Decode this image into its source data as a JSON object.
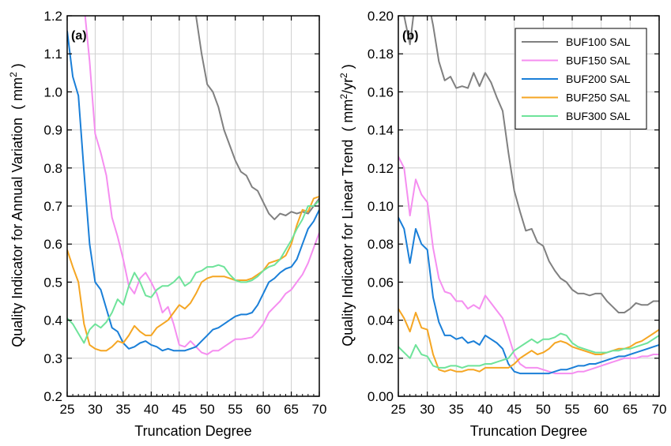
{
  "colors": {
    "BUF100": "#808080",
    "BUF150": "#f58ef0",
    "BUF200": "#1a7fd8",
    "BUF250": "#f5a623",
    "BUF300": "#6ee39a",
    "grid": "#d0d0d0"
  },
  "chart_data": [
    {
      "type": "line",
      "panel_label": "(a)",
      "xlabel": "Truncation Degree",
      "ylabel": "Quality Indicator for Annual Variation",
      "ylabel_unit_open": "( mm",
      "ylabel_unit_sup": "2",
      "ylabel_unit_close": " )",
      "xlim": [
        25,
        70
      ],
      "ylim": [
        0.2,
        1.2
      ],
      "xticks": [
        25,
        30,
        35,
        40,
        45,
        50,
        55,
        60,
        65,
        70
      ],
      "yticks": [
        0.2,
        0.3,
        0.4,
        0.5,
        0.6,
        0.7,
        0.8,
        0.9,
        1.0,
        1.1,
        1.2
      ],
      "ytick_labels": [
        "0.2",
        "0.3",
        "0.4",
        "0.5",
        "0.6",
        "0.7",
        "0.8",
        "0.9",
        "1.0",
        "1.1",
        "1.2"
      ],
      "grid": true,
      "x": [
        25,
        26,
        27,
        28,
        29,
        30,
        31,
        32,
        33,
        34,
        35,
        36,
        37,
        38,
        39,
        40,
        41,
        42,
        43,
        44,
        45,
        46,
        47,
        48,
        49,
        50,
        51,
        52,
        53,
        54,
        55,
        56,
        57,
        58,
        59,
        60,
        61,
        62,
        63,
        64,
        65,
        66,
        67,
        68,
        69,
        70
      ],
      "series": [
        {
          "name": "BUF100 SAL",
          "color_key": "BUF100",
          "values": [
            null,
            null,
            null,
            null,
            null,
            null,
            null,
            null,
            null,
            null,
            null,
            null,
            null,
            null,
            null,
            null,
            null,
            null,
            null,
            null,
            null,
            null,
            1.3,
            1.2,
            1.1,
            1.02,
            1.0,
            0.96,
            0.9,
            0.86,
            0.82,
            0.79,
            0.78,
            0.75,
            0.74,
            0.71,
            0.68,
            0.665,
            0.68,
            0.675,
            0.685,
            0.68,
            0.685,
            0.68,
            0.7,
            0.72
          ]
        },
        {
          "name": "BUF150 SAL",
          "color_key": "BUF150",
          "values": [
            null,
            null,
            1.4,
            1.23,
            1.08,
            0.89,
            0.84,
            0.78,
            0.67,
            0.62,
            0.56,
            0.49,
            0.47,
            0.51,
            0.525,
            0.5,
            0.47,
            0.42,
            0.435,
            0.39,
            0.335,
            0.33,
            0.345,
            0.33,
            0.315,
            0.31,
            0.32,
            0.32,
            0.33,
            0.34,
            0.35,
            0.35,
            0.352,
            0.355,
            0.37,
            0.39,
            0.42,
            0.435,
            0.45,
            0.47,
            0.48,
            0.5,
            0.52,
            0.55,
            0.59,
            0.63
          ]
        },
        {
          "name": "BUF200 SAL",
          "color_key": "BUF200",
          "values": [
            1.16,
            1.04,
            0.99,
            0.79,
            0.6,
            0.5,
            0.48,
            0.43,
            0.38,
            0.37,
            0.34,
            0.325,
            0.33,
            0.34,
            0.345,
            0.335,
            0.33,
            0.32,
            0.325,
            0.32,
            0.32,
            0.32,
            0.325,
            0.33,
            0.345,
            0.36,
            0.375,
            0.38,
            0.39,
            0.4,
            0.41,
            0.415,
            0.415,
            0.42,
            0.44,
            0.47,
            0.5,
            0.51,
            0.525,
            0.535,
            0.54,
            0.56,
            0.6,
            0.64,
            0.66,
            0.69
          ]
        },
        {
          "name": "BUF250 SAL",
          "color_key": "BUF250",
          "values": [
            0.585,
            0.54,
            0.5,
            0.39,
            0.335,
            0.325,
            0.32,
            0.32,
            0.33,
            0.345,
            0.34,
            0.36,
            0.385,
            0.37,
            0.36,
            0.36,
            0.38,
            0.39,
            0.4,
            0.42,
            0.44,
            0.43,
            0.445,
            0.47,
            0.5,
            0.51,
            0.515,
            0.515,
            0.515,
            0.51,
            0.505,
            0.505,
            0.505,
            0.51,
            0.52,
            0.53,
            0.55,
            0.555,
            0.56,
            0.57,
            0.6,
            0.65,
            0.69,
            0.685,
            0.72,
            0.725
          ]
        },
        {
          "name": "BUF300 SAL",
          "color_key": "BUF300",
          "values": [
            0.405,
            0.39,
            0.365,
            0.34,
            0.375,
            0.39,
            0.38,
            0.395,
            0.42,
            0.455,
            0.44,
            0.49,
            0.525,
            0.5,
            0.465,
            0.46,
            0.48,
            0.49,
            0.49,
            0.5,
            0.515,
            0.49,
            0.5,
            0.525,
            0.53,
            0.54,
            0.54,
            0.545,
            0.54,
            0.52,
            0.505,
            0.5,
            0.5,
            0.505,
            0.515,
            0.53,
            0.54,
            0.545,
            0.56,
            0.585,
            0.61,
            0.64,
            0.665,
            0.7,
            0.7,
            0.715
          ]
        }
      ]
    },
    {
      "type": "line",
      "panel_label": "(b)",
      "xlabel": "Truncation Degree",
      "ylabel": "Quality Indicator for Linear Trend",
      "ylabel_unit_open": "( mm",
      "ylabel_unit_sup": "2",
      "ylabel_unit_mid": "/yr",
      "ylabel_unit_sup2": "2",
      "ylabel_unit_close": " )",
      "xlim": [
        25,
        70
      ],
      "ylim": [
        0,
        0.2
      ],
      "xticks": [
        25,
        30,
        35,
        40,
        45,
        50,
        55,
        60,
        65,
        70
      ],
      "yticks": [
        0,
        0.02,
        0.04,
        0.06,
        0.08,
        0.1,
        0.12,
        0.14,
        0.16,
        0.18,
        0.2
      ],
      "ytick_labels": [
        "0.00",
        "0.02",
        "0.04",
        "0.06",
        "0.08",
        "0.10",
        "0.12",
        "0.14",
        "0.16",
        "0.18",
        "0.20"
      ],
      "grid": true,
      "legend_position": "top-right",
      "x": [
        25,
        26,
        27,
        28,
        29,
        30,
        31,
        32,
        33,
        34,
        35,
        36,
        37,
        38,
        39,
        40,
        41,
        42,
        43,
        44,
        45,
        46,
        47,
        48,
        49,
        50,
        51,
        52,
        53,
        54,
        55,
        56,
        57,
        58,
        59,
        60,
        61,
        62,
        63,
        64,
        65,
        66,
        67,
        68,
        69,
        70
      ],
      "series": [
        {
          "name": "BUF100 SAL",
          "color_key": "BUF100",
          "values": [
            0.21,
            0.2,
            0.185,
            0.21,
            0.215,
            0.21,
            0.195,
            0.176,
            0.166,
            0.168,
            0.162,
            0.163,
            0.162,
            0.17,
            0.163,
            0.17,
            0.165,
            0.157,
            0.15,
            0.128,
            0.108,
            0.097,
            0.087,
            0.088,
            0.081,
            0.079,
            0.071,
            0.066,
            0.062,
            0.06,
            0.056,
            0.054,
            0.054,
            0.053,
            0.054,
            0.054,
            0.05,
            0.047,
            0.044,
            0.044,
            0.046,
            0.049,
            0.048,
            0.048,
            0.05,
            0.05
          ]
        },
        {
          "name": "BUF150 SAL",
          "color_key": "BUF150",
          "values": [
            0.126,
            0.12,
            0.095,
            0.114,
            0.106,
            0.102,
            0.078,
            0.062,
            0.055,
            0.054,
            0.05,
            0.05,
            0.046,
            0.048,
            0.046,
            0.053,
            0.049,
            0.045,
            0.041,
            0.032,
            0.022,
            0.017,
            0.015,
            0.015,
            0.015,
            0.014,
            0.013,
            0.012,
            0.012,
            0.012,
            0.012,
            0.013,
            0.013,
            0.014,
            0.015,
            0.016,
            0.017,
            0.018,
            0.019,
            0.02,
            0.02,
            0.02,
            0.021,
            0.021,
            0.022,
            0.022
          ]
        },
        {
          "name": "BUF200 SAL",
          "color_key": "BUF200",
          "values": [
            0.094,
            0.088,
            0.07,
            0.088,
            0.08,
            0.077,
            0.052,
            0.039,
            0.032,
            0.032,
            0.03,
            0.031,
            0.028,
            0.029,
            0.027,
            0.032,
            0.03,
            0.028,
            0.025,
            0.017,
            0.013,
            0.012,
            0.012,
            0.012,
            0.012,
            0.012,
            0.012,
            0.013,
            0.014,
            0.014,
            0.015,
            0.016,
            0.016,
            0.017,
            0.017,
            0.018,
            0.019,
            0.02,
            0.021,
            0.021,
            0.022,
            0.023,
            0.024,
            0.025,
            0.026,
            0.027
          ]
        },
        {
          "name": "BUF250 SAL",
          "color_key": "BUF250",
          "values": [
            0.046,
            0.041,
            0.034,
            0.044,
            0.036,
            0.035,
            0.022,
            0.014,
            0.013,
            0.014,
            0.013,
            0.013,
            0.014,
            0.014,
            0.013,
            0.015,
            0.015,
            0.015,
            0.015,
            0.015,
            0.017,
            0.02,
            0.022,
            0.024,
            0.022,
            0.023,
            0.025,
            0.028,
            0.029,
            0.028,
            0.026,
            0.025,
            0.024,
            0.023,
            0.022,
            0.022,
            0.023,
            0.024,
            0.025,
            0.025,
            0.026,
            0.028,
            0.029,
            0.031,
            0.033,
            0.035
          ]
        },
        {
          "name": "BUF300 SAL",
          "color_key": "BUF300",
          "values": [
            0.026,
            0.023,
            0.02,
            0.027,
            0.022,
            0.021,
            0.016,
            0.015,
            0.015,
            0.016,
            0.016,
            0.015,
            0.016,
            0.016,
            0.016,
            0.017,
            0.017,
            0.018,
            0.019,
            0.02,
            0.024,
            0.026,
            0.028,
            0.03,
            0.028,
            0.03,
            0.03,
            0.031,
            0.033,
            0.032,
            0.028,
            0.026,
            0.025,
            0.024,
            0.023,
            0.023,
            0.023,
            0.024,
            0.024,
            0.025,
            0.025,
            0.026,
            0.027,
            0.028,
            0.03,
            0.032
          ]
        }
      ]
    }
  ]
}
